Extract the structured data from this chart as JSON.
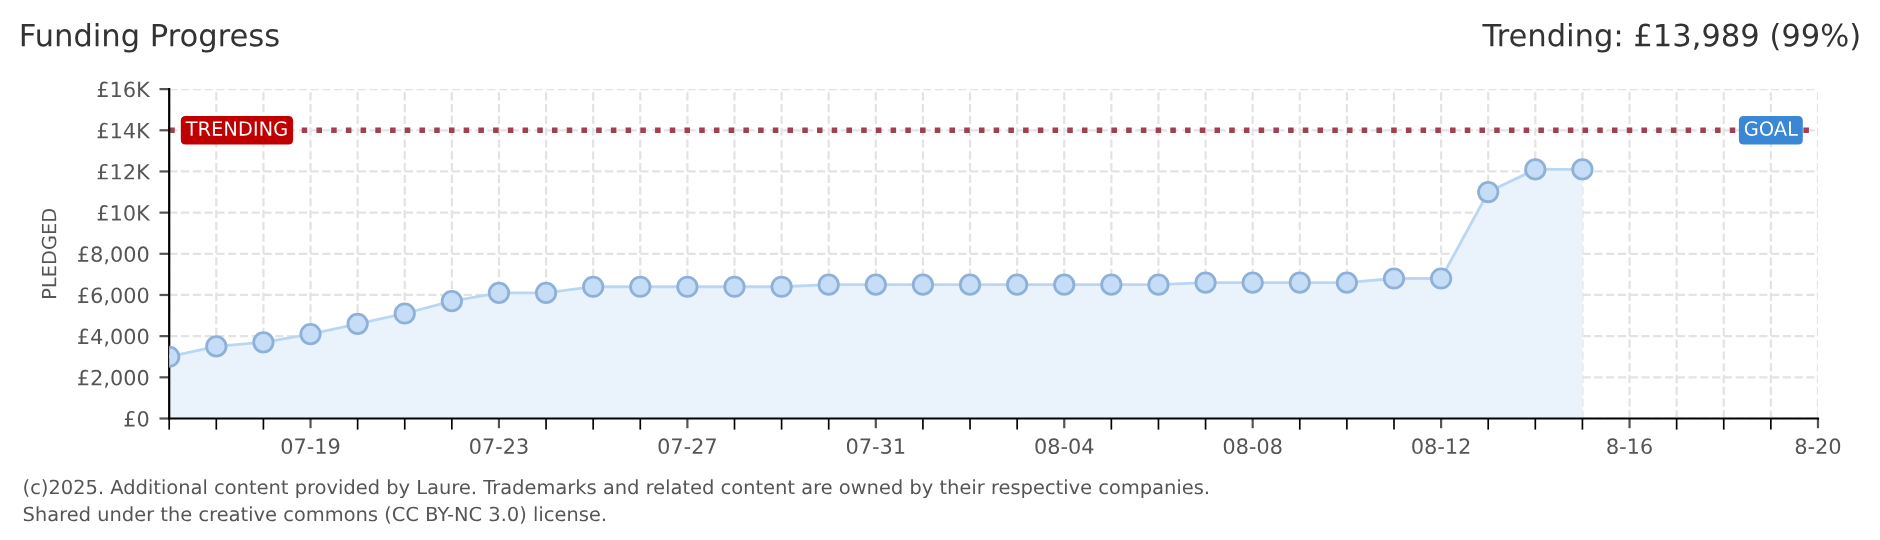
{
  "chart_data": {
    "type": "area",
    "title": "Funding Progress",
    "subtitle": "Trending: £13,989 (99%)",
    "ylabel": "PLEDGED",
    "annotations": [
      {
        "text": "GOAL",
        "x": "2025-08-19",
        "y": 14000
      },
      "(c)2025. Additional content provided by Laure. Trademarks and related content are owned by their respective companies.",
      "Shared under the creative commons (CC BY-NC 3.0) license."
    ],
    "x": [
      "2025-07-16",
      "2025-07-17",
      "2025-07-18",
      "2025-07-19",
      "2025-07-20",
      "2025-07-21",
      "2025-07-22",
      "2025-07-23",
      "2025-07-24",
      "2025-07-25",
      "2025-07-26",
      "2025-07-27",
      "2025-07-28",
      "2025-07-29",
      "2025-07-30",
      "2025-07-31",
      "2025-08-01",
      "2025-08-02",
      "2025-08-03",
      "2025-08-04",
      "2025-08-05",
      "2025-08-06",
      "2025-08-07",
      "2025-08-08",
      "2025-08-09",
      "2025-08-10",
      "2025-08-11",
      "2025-08-12",
      "2025-08-13",
      "2025-08-14",
      "2025-08-15"
    ],
    "series": [
      {
        "color": "#b9d7f5",
        "values": [
          3000,
          3500,
          3700,
          4100,
          4600,
          5100,
          5700,
          6100,
          6100,
          6400,
          6400,
          6400,
          6400,
          6400,
          6500,
          6500,
          6500,
          6500,
          6500,
          6500,
          6500,
          6500,
          6600,
          6600,
          6600,
          6600,
          6800,
          6800,
          11000,
          12100,
          12100
        ]
      }
    ],
    "marker": "circle",
    "grid": true,
    "ylim": [
      0,
      16000
    ],
    "yticks": [
      {
        "value": 0,
        "label": "£0"
      },
      {
        "value": 2000,
        "label": "£2,000"
      },
      {
        "value": 4000,
        "label": "£4,000"
      },
      {
        "value": 6000,
        "label": "£6,000"
      },
      {
        "value": 8000,
        "label": "£8,000"
      },
      {
        "value": 10000,
        "label": "£10K"
      },
      {
        "value": 12000,
        "label": "£12K"
      },
      {
        "value": 14000,
        "label": "£14K"
      },
      {
        "value": 16000,
        "label": "£16K"
      }
    ],
    "xlim": [
      "2025-07-16",
      "2025-08-20"
    ],
    "xticks": [
      {
        "value": "2025-07-19",
        "label": "07-19"
      },
      {
        "value": "2025-07-23",
        "label": "07-23"
      },
      {
        "value": "2025-07-27",
        "label": "07-27"
      },
      {
        "value": "2025-07-31",
        "label": "07-31"
      },
      {
        "value": "2025-08-04",
        "label": "08-04"
      },
      {
        "value": "2025-08-08",
        "label": "08-08"
      },
      {
        "value": "2025-08-12",
        "label": "08-12"
      },
      {
        "value": "2025-08-16",
        "label": "8-16"
      },
      {
        "value": "2025-08-20",
        "label": "8-20"
      }
    ],
    "ref_lines": [
      {
        "axis": "y",
        "value": 14000,
        "label": "TRENDING",
        "color": "#a04050",
        "line_style": "dotted"
      }
    ]
  }
}
